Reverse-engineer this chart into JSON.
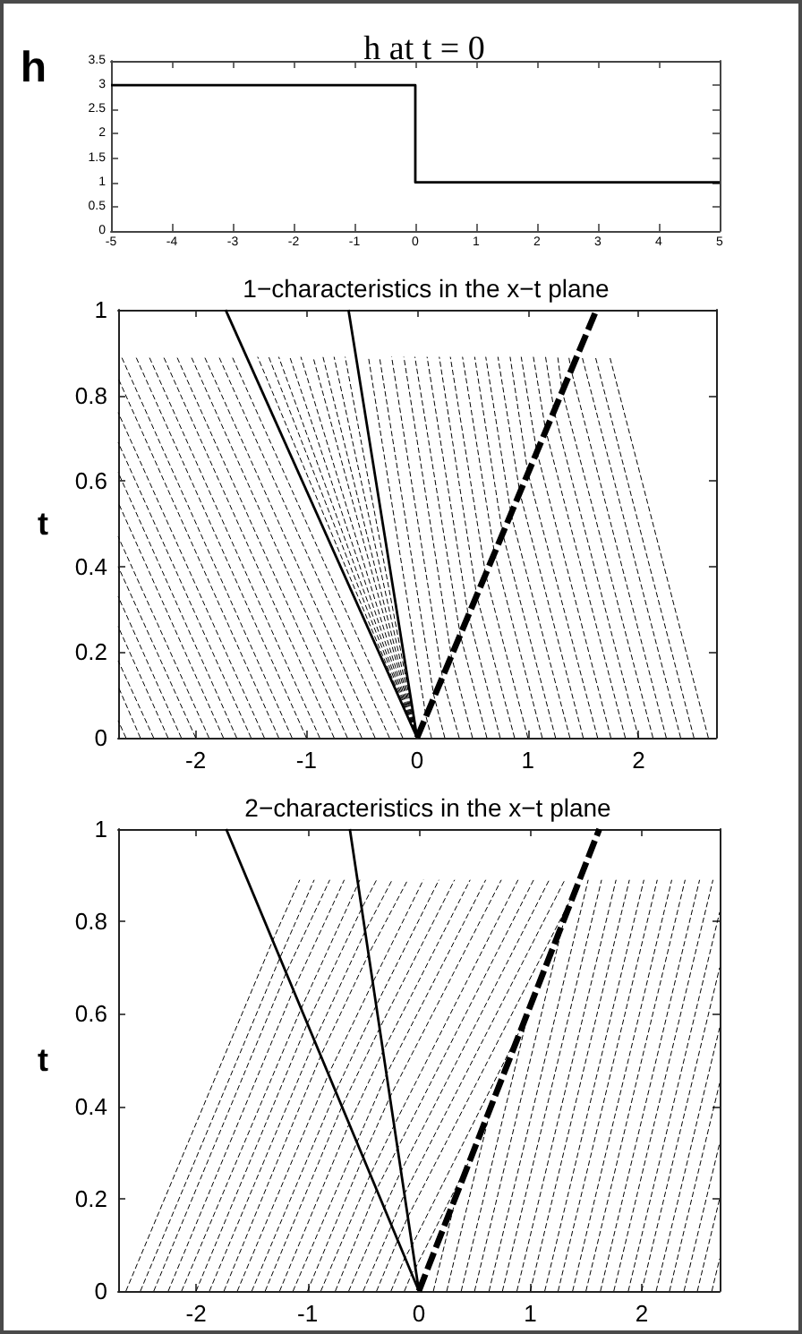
{
  "chart_data": [
    {
      "type": "line",
      "title": "h at t = 0",
      "ylabel": "h",
      "x": [
        -5,
        0,
        0,
        5
      ],
      "values": [
        3,
        3,
        1,
        1
      ],
      "color": "#000000",
      "line_style": "solid",
      "xlim": [
        -5,
        5
      ],
      "xticks": [
        -5,
        -4,
        -3,
        -2,
        -1,
        0,
        1,
        2,
        3,
        4,
        5
      ],
      "ylim": [
        0,
        3.5
      ],
      "yticks": [
        0,
        0.5,
        1,
        1.5,
        2,
        2.5,
        3,
        3.5
      ]
    },
    {
      "type": "line",
      "title": "1−characteristics in the x−t plane",
      "ylabel": "t",
      "xlim": [
        -2.7,
        2.7
      ],
      "xticks": [
        -2,
        -1,
        0,
        1,
        2
      ],
      "ylim": [
        0,
        1
      ],
      "yticks": [
        0,
        0.2,
        0.4,
        0.6,
        0.8,
        1
      ],
      "color": "#000000",
      "line_style": "dotted",
      "series": [
        {
          "x": [
            -0.13,
            -1.67
          ],
          "values": [
            0,
            0.89
          ]
        },
        {
          "x": [
            -0.25,
            -1.79
          ],
          "values": [
            0,
            0.89
          ]
        },
        {
          "x": [
            -0.38,
            -1.92
          ],
          "values": [
            0,
            0.89
          ]
        },
        {
          "x": [
            -0.5,
            -2.04
          ],
          "values": [
            0,
            0.89
          ]
        },
        {
          "x": [
            -0.63,
            -2.17
          ],
          "values": [
            0,
            0.89
          ]
        },
        {
          "x": [
            -0.75,
            -2.29
          ],
          "values": [
            0,
            0.89
          ]
        },
        {
          "x": [
            -0.88,
            -2.42
          ],
          "values": [
            0,
            0.89
          ]
        },
        {
          "x": [
            -1,
            -2.54
          ],
          "values": [
            0,
            0.89
          ]
        },
        {
          "x": [
            -1.13,
            -2.67
          ],
          "values": [
            0,
            0.89
          ]
        },
        {
          "x": [
            -1.25,
            -2.7
          ],
          "values": [
            0,
            0.84
          ]
        },
        {
          "x": [
            -1.38,
            -2.7
          ],
          "values": [
            0,
            0.76
          ]
        },
        {
          "x": [
            -1.5,
            -2.7
          ],
          "values": [
            0,
            0.69
          ]
        },
        {
          "x": [
            -1.63,
            -2.7
          ],
          "values": [
            0,
            0.62
          ]
        },
        {
          "x": [
            -1.75,
            -2.7
          ],
          "values": [
            0,
            0.55
          ]
        },
        {
          "x": [
            -1.88,
            -2.7
          ],
          "values": [
            0,
            0.47
          ]
        },
        {
          "x": [
            -2,
            -2.7
          ],
          "values": [
            0,
            0.4
          ]
        },
        {
          "x": [
            -2.13,
            -2.7
          ],
          "values": [
            0,
            0.33
          ]
        },
        {
          "x": [
            -2.25,
            -2.7
          ],
          "values": [
            0,
            0.26
          ]
        },
        {
          "x": [
            -2.38,
            -2.7
          ],
          "values": [
            0,
            0.18
          ]
        },
        {
          "x": [
            -2.5,
            -2.7
          ],
          "values": [
            0,
            0.12
          ]
        },
        {
          "x": [
            -2.63,
            -2.7
          ],
          "values": [
            0,
            0.04
          ]
        },
        {
          "x": [
            0,
            -1.44
          ],
          "values": [
            0,
            0.89
          ]
        },
        {
          "x": [
            0,
            -1.34
          ],
          "values": [
            0,
            0.89
          ]
        },
        {
          "x": [
            0,
            -1.25
          ],
          "values": [
            0,
            0.89
          ]
        },
        {
          "x": [
            0,
            -1.15
          ],
          "values": [
            0,
            0.89
          ]
        },
        {
          "x": [
            0,
            -1.05
          ],
          "values": [
            0,
            0.89
          ]
        },
        {
          "x": [
            0,
            -0.94
          ],
          "values": [
            0,
            0.89
          ]
        },
        {
          "x": [
            0,
            -0.85
          ],
          "values": [
            0,
            0.89
          ]
        },
        {
          "x": [
            0,
            -0.75
          ],
          "values": [
            0,
            0.89
          ]
        },
        {
          "x": [
            0,
            -0.65
          ],
          "values": [
            0,
            0.89
          ]
        },
        {
          "x": [
            0.13,
            0.08,
            -0.44
          ],
          "values": [
            0,
            0.05,
            0.89
          ]
        },
        {
          "x": [
            0.25,
            0.15,
            -0.34
          ],
          "values": [
            0,
            0.1,
            0.89
          ]
        },
        {
          "x": [
            0.38,
            0.23,
            -0.23
          ],
          "values": [
            0,
            0.14,
            0.89
          ]
        },
        {
          "x": [
            0.5,
            0.31,
            -0.12
          ],
          "values": [
            0,
            0.19,
            0.89
          ]
        },
        {
          "x": [
            0.63,
            0.39,
            -0.02
          ],
          "values": [
            0,
            0.24,
            0.89
          ]
        },
        {
          "x": [
            0.75,
            0.46,
            0.09
          ],
          "values": [
            0,
            0.29,
            0.89
          ]
        },
        {
          "x": [
            0.88,
            0.54,
            0.2
          ],
          "values": [
            0,
            0.33,
            0.89
          ]
        },
        {
          "x": [
            1,
            0.62,
            0.3
          ],
          "values": [
            0,
            0.38,
            0.89
          ]
        },
        {
          "x": [
            1.13,
            0.7,
            0.41
          ],
          "values": [
            0,
            0.43,
            0.89
          ]
        },
        {
          "x": [
            1.25,
            0.77,
            0.52
          ],
          "values": [
            0,
            0.48,
            0.89
          ]
        },
        {
          "x": [
            1.38,
            0.85,
            0.62
          ],
          "values": [
            0,
            0.52,
            0.89
          ]
        },
        {
          "x": [
            1.5,
            0.93,
            0.73
          ],
          "values": [
            0,
            0.57,
            0.89
          ]
        },
        {
          "x": [
            1.63,
            1,
            0.84
          ],
          "values": [
            0,
            0.62,
            0.89
          ]
        },
        {
          "x": [
            1.75,
            1.08,
            0.94
          ],
          "values": [
            0,
            0.67,
            0.89
          ]
        },
        {
          "x": [
            1.88,
            1.16,
            1.05
          ],
          "values": [
            0,
            0.72,
            0.89
          ]
        },
        {
          "x": [
            2,
            1.24,
            1.16
          ],
          "values": [
            0,
            0.76,
            0.89
          ]
        },
        {
          "x": [
            2.13,
            1.31,
            1.27
          ],
          "values": [
            0,
            0.81,
            0.89
          ]
        },
        {
          "x": [
            2.25,
            1.39,
            1.37
          ],
          "values": [
            0,
            0.86,
            0.89
          ]
        },
        {
          "x": [
            2.38,
            1.49
          ],
          "values": [
            0,
            0.89
          ]
        },
        {
          "x": [
            2.5,
            1.61
          ],
          "values": [
            0,
            0.89
          ]
        },
        {
          "x": [
            2.63,
            1.74
          ],
          "values": [
            0,
            0.89
          ]
        },
        {
          "x": [
            0,
            -1.73
          ],
          "values": [
            0,
            1
          ],
          "line_style": "solid"
        },
        {
          "x": [
            0,
            -0.62
          ],
          "values": [
            0,
            1
          ],
          "line_style": "solid"
        },
        {
          "x": [
            0,
            1.62
          ],
          "values": [
            0,
            1
          ],
          "line_style": "dashed"
        }
      ]
    },
    {
      "type": "line",
      "title": "2−characteristics in the x−t plane",
      "ylabel": "t",
      "xlim": [
        -2.7,
        2.7
      ],
      "xticks": [
        -2,
        -1,
        0,
        1,
        2
      ],
      "ylim": [
        0,
        1
      ],
      "yticks": [
        0,
        0.2,
        0.4,
        0.6,
        0.8,
        1
      ],
      "color": "#000000",
      "line_style": "dotted",
      "series": [
        {
          "x": [
            -0.13,
            -0.06,
            -0.03,
            0.47
          ],
          "values": [
            0,
            0.04,
            0.05,
            0.29
          ]
        },
        {
          "x": [
            -0.25,
            -0.13,
            -0.06,
            0.94
          ],
          "values": [
            0,
            0.07,
            0.1,
            0.58
          ]
        },
        {
          "x": [
            -0.38,
            -0.19,
            -0.1,
            1.41
          ],
          "values": [
            0,
            0.11,
            0.16,
            0.87
          ]
        },
        {
          "x": [
            -0.5,
            -0.25,
            -0.13,
            1.31
          ],
          "values": [
            0,
            0.14,
            0.21,
            0.89
          ]
        },
        {
          "x": [
            -0.63,
            -0.31,
            -0.16,
            1.17
          ],
          "values": [
            0,
            0.18,
            0.26,
            0.89
          ]
        },
        {
          "x": [
            -0.75,
            -0.38,
            -0.19,
            1.03
          ],
          "values": [
            0,
            0.22,
            0.31,
            0.89
          ]
        },
        {
          "x": [
            -0.88,
            -0.44,
            -0.22,
            0.89
          ],
          "values": [
            0,
            0.25,
            0.36,
            0.89
          ]
        },
        {
          "x": [
            -1,
            -0.5,
            -0.26,
            0.74
          ],
          "values": [
            0,
            0.29,
            0.42,
            0.89
          ]
        },
        {
          "x": [
            -1.13,
            -0.56,
            -0.29,
            0.6
          ],
          "values": [
            0,
            0.32,
            0.47,
            0.89
          ]
        },
        {
          "x": [
            -1.25,
            -0.63,
            -0.32,
            0.46
          ],
          "values": [
            0,
            0.36,
            0.52,
            0.89
          ]
        },
        {
          "x": [
            -1.38,
            -0.69,
            -0.35,
            0.32
          ],
          "values": [
            0,
            0.4,
            0.57,
            0.89
          ]
        },
        {
          "x": [
            -1.5,
            -0.75,
            -0.38,
            0.18
          ],
          "values": [
            0,
            0.43,
            0.62,
            0.89
          ]
        },
        {
          "x": [
            -1.63,
            -0.81,
            -0.41,
            0.04
          ],
          "values": [
            0,
            0.47,
            0.67,
            0.89
          ]
        },
        {
          "x": [
            -1.75,
            -0.88,
            -0.45,
            -0.1
          ],
          "values": [
            0,
            0.51,
            0.73,
            0.89
          ]
        },
        {
          "x": [
            -1.88,
            -0.94,
            -0.48,
            -0.24
          ],
          "values": [
            0,
            0.54,
            0.78,
            0.89
          ]
        },
        {
          "x": [
            -2,
            -1,
            -0.51,
            -0.38
          ],
          "values": [
            0,
            0.58,
            0.83,
            0.89
          ]
        },
        {
          "x": [
            -2.13,
            -1.06,
            -0.53
          ],
          "values": [
            0,
            0.61,
            0.89
          ]
        },
        {
          "x": [
            -2.25,
            -1.13,
            -0.67
          ],
          "values": [
            0,
            0.65,
            0.89
          ]
        },
        {
          "x": [
            -2.38,
            -1.19,
            -0.8
          ],
          "values": [
            0,
            0.69,
            0.89
          ]
        },
        {
          "x": [
            -2.5,
            -1.25,
            -0.94
          ],
          "values": [
            0,
            0.72,
            0.89
          ]
        },
        {
          "x": [
            -2.63,
            -1.31,
            -1.07
          ],
          "values": [
            0,
            0.76,
            0.89
          ]
        },
        {
          "x": [
            0.13,
            0.33
          ],
          "values": [
            0,
            0.2
          ]
        },
        {
          "x": [
            0.25,
            0.65
          ],
          "values": [
            0,
            0.4
          ]
        },
        {
          "x": [
            0.38,
            0.98
          ],
          "values": [
            0,
            0.6
          ]
        },
        {
          "x": [
            0.5,
            1.31
          ],
          "values": [
            0,
            0.81
          ]
        },
        {
          "x": [
            0.63,
            1.52
          ],
          "values": [
            0,
            0.89
          ]
        },
        {
          "x": [
            0.75,
            1.64
          ],
          "values": [
            0,
            0.89
          ]
        },
        {
          "x": [
            0.88,
            1.77
          ],
          "values": [
            0,
            0.89
          ]
        },
        {
          "x": [
            1,
            1.89
          ],
          "values": [
            0,
            0.89
          ]
        },
        {
          "x": [
            1.13,
            2.02
          ],
          "values": [
            0,
            0.89
          ]
        },
        {
          "x": [
            1.25,
            2.14
          ],
          "values": [
            0,
            0.89
          ]
        },
        {
          "x": [
            1.38,
            2.27
          ],
          "values": [
            0,
            0.89
          ]
        },
        {
          "x": [
            1.5,
            2.39
          ],
          "values": [
            0,
            0.89
          ]
        },
        {
          "x": [
            1.63,
            2.52
          ],
          "values": [
            0,
            0.89
          ]
        },
        {
          "x": [
            1.75,
            2.64
          ],
          "values": [
            0,
            0.89
          ]
        },
        {
          "x": [
            1.88,
            2.7
          ],
          "values": [
            0,
            0.82
          ]
        },
        {
          "x": [
            2,
            2.7
          ],
          "values": [
            0,
            0.7
          ]
        },
        {
          "x": [
            2.13,
            2.7
          ],
          "values": [
            0,
            0.57
          ]
        },
        {
          "x": [
            2.25,
            2.7
          ],
          "values": [
            0,
            0.45
          ]
        },
        {
          "x": [
            2.38,
            2.7
          ],
          "values": [
            0,
            0.32
          ]
        },
        {
          "x": [
            2.5,
            2.7
          ],
          "values": [
            0,
            0.2
          ]
        },
        {
          "x": [
            2.63,
            2.7
          ],
          "values": [
            0,
            0.07
          ]
        },
        {
          "x": [
            0,
            -1.73
          ],
          "values": [
            0,
            1
          ],
          "line_style": "solid"
        },
        {
          "x": [
            0,
            -0.62
          ],
          "values": [
            0,
            1
          ],
          "line_style": "solid"
        },
        {
          "x": [
            0,
            1.62
          ],
          "values": [
            0,
            1
          ],
          "line_style": "dashed"
        }
      ]
    }
  ]
}
